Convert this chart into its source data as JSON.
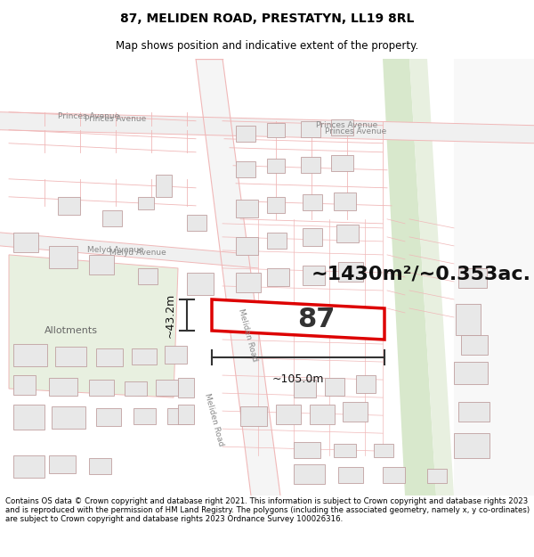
{
  "title_line1": "87, MELIDEN ROAD, PRESTATYN, LL19 8RL",
  "title_line2": "Map shows position and indicative extent of the property.",
  "footer": "Contains OS data © Crown copyright and database right 2021. This information is subject to Crown copyright and database rights 2023 and is reproduced with the permission of HM Land Registry. The polygons (including the associated geometry, namely x, y co-ordinates) are subject to Crown copyright and database rights 2023 Ordnance Survey 100026316.",
  "area_label": "~1430m²/~0.353ac.",
  "plot_number": "87",
  "dim_width": "~105.0m",
  "dim_height": "~43.2m",
  "map_bg": "#ffffff",
  "road_outline_color": "#f0b8b8",
  "plot_border": "#dd0000",
  "building_fill": "#e8e8e8",
  "building_border": "#c0a0a0",
  "green_area": "#e8f0e0",
  "green_area2": "#d8e8cc",
  "allotments_fill": "#e8f0e0",
  "road_fill": "#ffffff",
  "dim_color": "#333333",
  "label_color": "#888888",
  "title_fontsize": 10,
  "subtitle_fontsize": 8.5,
  "footer_fontsize": 6.2,
  "area_fontsize": 16,
  "plot_num_fontsize": 22,
  "dim_fontsize": 9
}
